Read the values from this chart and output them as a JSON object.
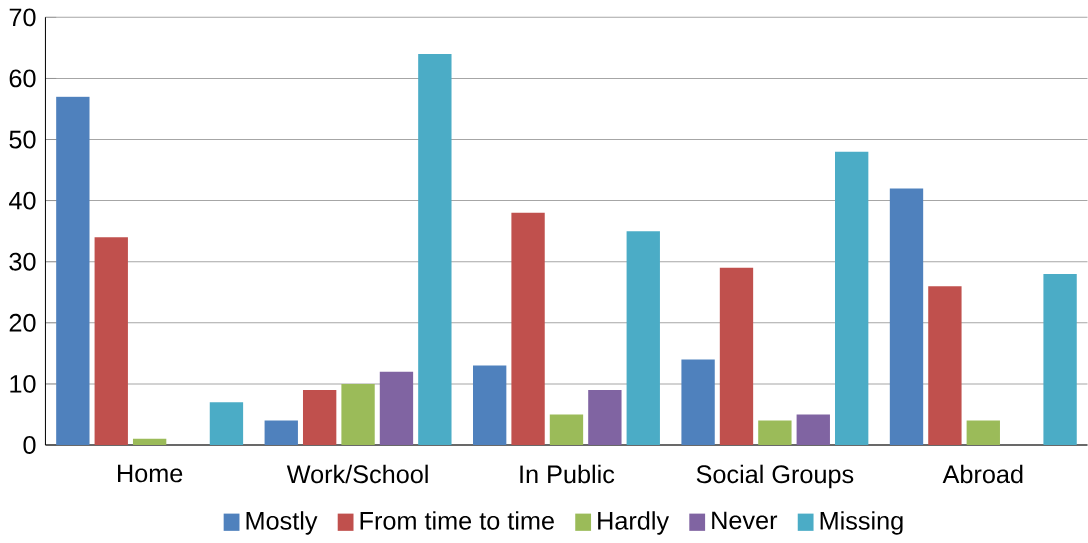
{
  "chart_data": {
    "type": "bar",
    "categories": [
      "Home",
      "Work/School",
      "In Public",
      "Social Groups",
      "Abroad"
    ],
    "series": [
      {
        "name": "Mostly",
        "color": "#4f81bd",
        "values": [
          57,
          4,
          13,
          14,
          42
        ]
      },
      {
        "name": "From time to time",
        "color": "#c0504d",
        "values": [
          34,
          9,
          38,
          29,
          26
        ]
      },
      {
        "name": "Hardly",
        "color": "#9bbb59",
        "values": [
          1,
          10,
          5,
          4,
          4
        ]
      },
      {
        "name": "Never",
        "color": "#8064a2",
        "values": [
          0,
          12,
          9,
          5,
          0
        ]
      },
      {
        "name": "Missing",
        "color": "#4bacc6",
        "values": [
          7,
          64,
          35,
          48,
          28
        ]
      }
    ],
    "ylim": [
      0,
      70
    ],
    "yticks": [
      0,
      10,
      20,
      30,
      40,
      50,
      60,
      70
    ],
    "grid": "y",
    "legend": "bottom"
  }
}
